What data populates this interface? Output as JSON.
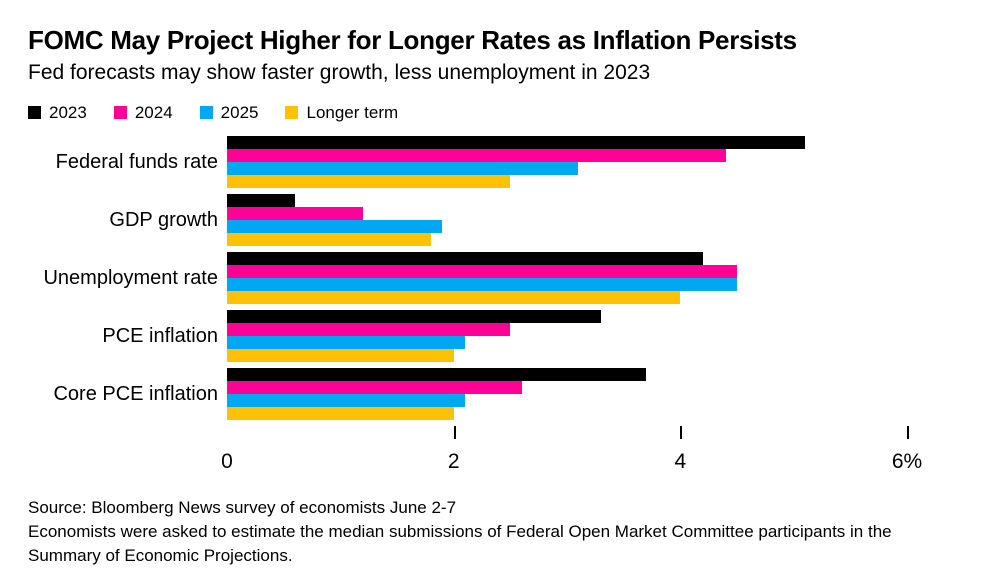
{
  "header": {
    "title": "FOMC May Project Higher for Longer Rates as Inflation Persists",
    "subtitle": "Fed forecasts may show faster growth, less unemployment in 2023"
  },
  "chart_data": {
    "type": "bar",
    "orientation": "horizontal",
    "title": "FOMC May Project Higher for Longer Rates as Inflation Persists",
    "subtitle": "Fed forecasts may show faster growth, less unemployment in 2023",
    "categories": [
      "Federal funds rate",
      "GDP growth",
      "Unemployment rate",
      "PCE inflation",
      "Core PCE inflation"
    ],
    "series": [
      {
        "name": "2023",
        "color": "#000000",
        "values": [
          5.1,
          0.6,
          4.2,
          3.3,
          3.7
        ]
      },
      {
        "name": "2024",
        "color": "#FF0099",
        "values": [
          4.4,
          1.2,
          4.5,
          2.5,
          2.6
        ]
      },
      {
        "name": "2025",
        "color": "#00A7F3",
        "values": [
          3.1,
          1.9,
          4.5,
          2.1,
          2.1
        ]
      },
      {
        "name": "Longer term",
        "color": "#FFC106",
        "values": [
          2.5,
          1.8,
          4.0,
          2.0,
          2.0
        ]
      }
    ],
    "xlim": [
      0,
      6
    ],
    "x_tick_labels": [
      {
        "value": 0,
        "label": "0"
      },
      {
        "value": 2,
        "label": "2"
      },
      {
        "value": 4,
        "label": "4"
      },
      {
        "value": 6,
        "label": "6%"
      }
    ],
    "x_tick_marks": [
      2,
      4,
      6
    ],
    "grid": false,
    "legend_position": "top",
    "unit": "%"
  },
  "footer": {
    "source": "Source: Bloomberg News survey of economists June 2-7",
    "note": "Economists were asked to estimate the median submissions of Federal Open Market Committee participants in the Summary of Economic Projections."
  }
}
